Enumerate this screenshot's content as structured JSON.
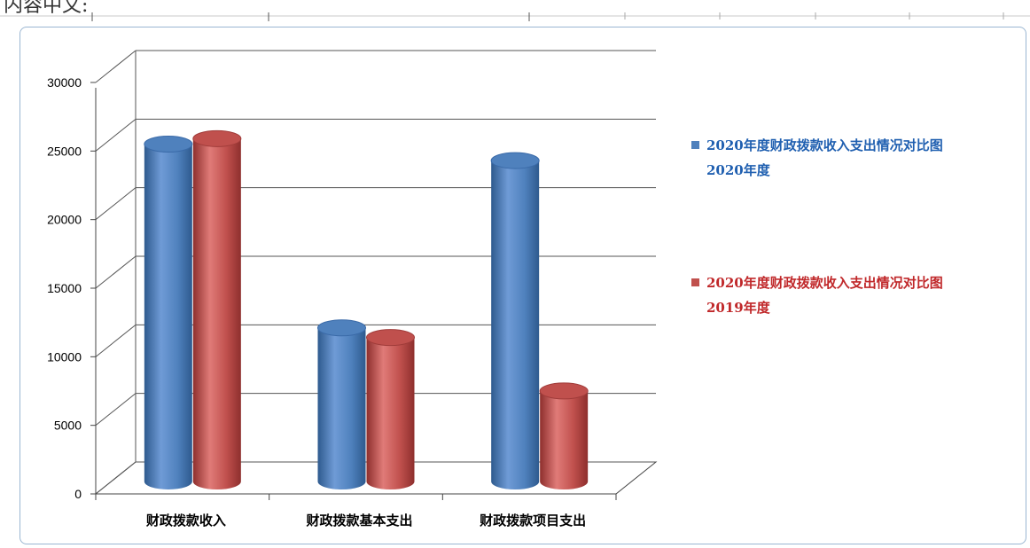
{
  "top_text": "内容中文:",
  "chart_data": {
    "type": "bar",
    "categories": [
      "财政拨款收入",
      "财政拨款基本支出",
      "财政拨款项目支出"
    ],
    "series": [
      {
        "name": "2020年度财政拨款收入支出情况对比图 2020年度",
        "legend_line1": "2020年度财政拨款收入支出情况对比图",
        "legend_line2": "2020年度",
        "color": "#4f81bd",
        "values": [
          24600,
          11200,
          23400
        ]
      },
      {
        "name": "2020年度财政拨款收入支出情况对比图 2019年度",
        "legend_line1": "2020年度财政拨款收入支出情况对比图",
        "legend_line2": "2019年度",
        "color": "#c0504d",
        "values": [
          25000,
          10500,
          6600
        ]
      }
    ],
    "yticks": [
      "0",
      "5000",
      "10000",
      "15000",
      "20000",
      "25000",
      "30000"
    ],
    "ylim": [
      0,
      30000
    ],
    "grid": true,
    "legend_position": "right"
  }
}
